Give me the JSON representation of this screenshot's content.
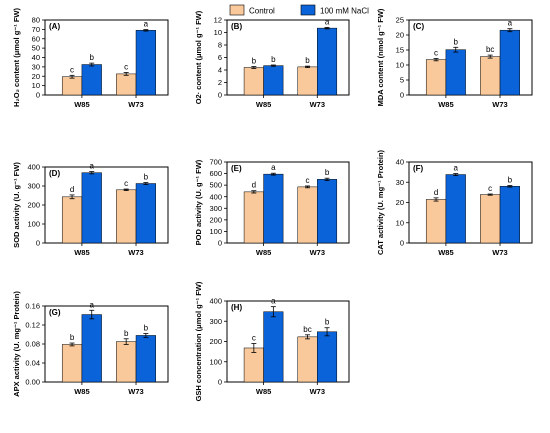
{
  "colors": {
    "control": "#f9c99b",
    "nacl": "#0a63d9"
  },
  "legend": {
    "control": "Control",
    "nacl": "100 mM NaCl"
  },
  "chart_data": [
    {
      "type": "bar",
      "tag": "(A)",
      "ylabel": "H₂O₂ content (μmol g⁻¹ FW)",
      "categories": [
        "W85",
        "W73"
      ],
      "ylim": [
        0,
        80
      ],
      "yticks": [
        "0",
        "10",
        "20",
        "30",
        "40",
        "50",
        "60",
        "70",
        "80"
      ],
      "series": [
        {
          "name": "Control",
          "values": [
            19.5,
            22.5
          ],
          "errors": [
            1.5,
            1.5
          ],
          "letters": [
            "c",
            "c"
          ]
        },
        {
          "name": "100 mM NaCl",
          "values": [
            32.5,
            69.0
          ],
          "errors": [
            1.5,
            0.8
          ],
          "letters": [
            "b",
            "a"
          ]
        }
      ]
    },
    {
      "type": "bar",
      "tag": "(B)",
      "ylabel": "O2· content (μmol g⁻¹ FW)",
      "categories": [
        "W85",
        "W73"
      ],
      "ylim": [
        0,
        12
      ],
      "yticks": [
        "0",
        "2",
        "4",
        "6",
        "8",
        "10",
        "12"
      ],
      "series": [
        {
          "name": "Control",
          "values": [
            4.4,
            4.5
          ],
          "errors": [
            0.15,
            0.12
          ],
          "letters": [
            "b",
            "b"
          ]
        },
        {
          "name": "100 mM NaCl",
          "values": [
            4.7,
            10.7
          ],
          "errors": [
            0.1,
            0.12
          ],
          "letters": [
            "b",
            "a"
          ]
        }
      ]
    },
    {
      "type": "bar",
      "tag": "(C)",
      "ylabel": "MDA content (nmol g⁻¹ FW)",
      "categories": [
        "W85",
        "W73"
      ],
      "ylim": [
        0,
        25
      ],
      "yticks": [
        "0",
        "5",
        "10",
        "15",
        "20",
        "25"
      ],
      "series": [
        {
          "name": "Control",
          "values": [
            11.8,
            12.8
          ],
          "errors": [
            0.4,
            0.5
          ],
          "letters": [
            "c",
            "bc"
          ]
        },
        {
          "name": "100 mM NaCl",
          "values": [
            15.1,
            21.6
          ],
          "errors": [
            0.8,
            0.5
          ],
          "letters": [
            "b",
            "a"
          ]
        }
      ]
    },
    {
      "type": "bar",
      "tag": "(D)",
      "ylabel": "SOD activity (U. g⁻¹ FW)",
      "categories": [
        "W85",
        "W73"
      ],
      "ylim": [
        0,
        400
      ],
      "yticks": [
        "0",
        "100",
        "200",
        "300",
        "400"
      ],
      "series": [
        {
          "name": "Control",
          "values": [
            243,
            280
          ],
          "errors": [
            10,
            4
          ],
          "letters": [
            "d",
            "c"
          ]
        },
        {
          "name": "100 mM NaCl",
          "values": [
            370,
            313
          ],
          "errors": [
            6,
            5
          ],
          "letters": [
            "a",
            "b"
          ]
        }
      ]
    },
    {
      "type": "bar",
      "tag": "(E)",
      "ylabel": "POD activity (U. g⁻¹ FW)",
      "categories": [
        "W85",
        "W73"
      ],
      "ylim": [
        0,
        700
      ],
      "yticks": [
        "0",
        "100",
        "200",
        "300",
        "400",
        "500",
        "600",
        "700"
      ],
      "series": [
        {
          "name": "Control",
          "values": [
            442,
            485
          ],
          "errors": [
            10,
            8
          ],
          "letters": [
            "d",
            "c"
          ]
        },
        {
          "name": "100 mM NaCl",
          "values": [
            595,
            550
          ],
          "errors": [
            8,
            10
          ],
          "letters": [
            "a",
            "b"
          ]
        }
      ]
    },
    {
      "type": "bar",
      "tag": "(F)",
      "ylabel": "CAT activity (U. mg⁻¹ Protein)",
      "categories": [
        "W85",
        "W73"
      ],
      "ylim": [
        0,
        40
      ],
      "yticks": [
        "0",
        "10",
        "20",
        "30",
        "40"
      ],
      "series": [
        {
          "name": "Control",
          "values": [
            21.5,
            23.9
          ],
          "errors": [
            0.8,
            0.3
          ],
          "letters": [
            "d",
            "c"
          ]
        },
        {
          "name": "100 mM NaCl",
          "values": [
            33.8,
            28.0
          ],
          "errors": [
            0.5,
            0.4
          ],
          "letters": [
            "a",
            "b"
          ]
        }
      ]
    },
    {
      "type": "bar",
      "tag": "(G)",
      "ylabel": "APX activity (U. mg⁻¹ Protein)",
      "categories": [
        "W85",
        "W73"
      ],
      "ylim": [
        0,
        0.16
      ],
      "yticks": [
        "0.00",
        "0.04",
        "0.08",
        "0.12",
        "0.16"
      ],
      "series": [
        {
          "name": "Control",
          "values": [
            0.079,
            0.085
          ],
          "errors": [
            0.003,
            0.006
          ],
          "letters": [
            "b",
            "b"
          ]
        },
        {
          "name": "100 mM NaCl",
          "values": [
            0.142,
            0.098
          ],
          "errors": [
            0.009,
            0.004
          ],
          "letters": [
            "a",
            "b"
          ]
        }
      ]
    },
    {
      "type": "bar",
      "tag": "(H)",
      "ylabel": "GSH concentration (μmol g⁻¹ FW)",
      "categories": [
        "W85",
        "W73"
      ],
      "ylim": [
        0,
        400
      ],
      "yticks": [
        "0",
        "100",
        "200",
        "300",
        "400"
      ],
      "series": [
        {
          "name": "Control",
          "values": [
            168,
            223
          ],
          "errors": [
            22,
            10
          ],
          "letters": [
            "c",
            "bc"
          ]
        },
        {
          "name": "100 mM NaCl",
          "values": [
            347,
            248
          ],
          "errors": [
            25,
            20
          ],
          "letters": [
            "a",
            "b"
          ]
        }
      ]
    }
  ]
}
